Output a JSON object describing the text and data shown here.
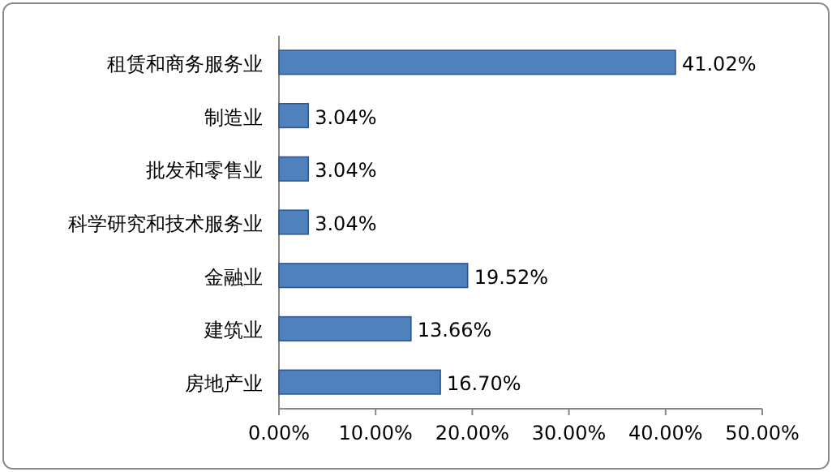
{
  "chart_data": {
    "type": "bar",
    "orientation": "horizontal",
    "categories": [
      "租赁和商务服务业",
      "制造业",
      "批发和零售业",
      "科学研究和技术服务业",
      "金融业",
      "建筑业",
      "房地产业"
    ],
    "values": [
      41.02,
      3.04,
      3.04,
      3.04,
      19.52,
      13.66,
      16.7
    ],
    "value_labels": [
      "41.02%",
      "3.04%",
      "3.04%",
      "3.04%",
      "19.52%",
      "13.66%",
      "16.70%"
    ],
    "color": "#4f81bd",
    "xlim": [
      0,
      50
    ],
    "xticks": [
      {
        "value": 0,
        "label": "0.00%"
      },
      {
        "value": 10,
        "label": "10.00%"
      },
      {
        "value": 20,
        "label": "20.00%"
      },
      {
        "value": 30,
        "label": "30.00%"
      },
      {
        "value": 40,
        "label": "40.00%"
      },
      {
        "value": 50,
        "label": "50.00%"
      }
    ],
    "grid": false
  }
}
